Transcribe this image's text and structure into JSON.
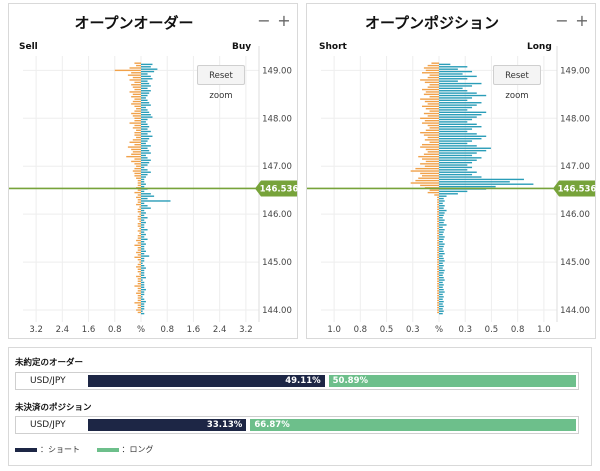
{
  "colors": {
    "sell": "#f0a14a",
    "buy": "#2a9db8",
    "price_line": "#77a33a",
    "short_bar": "#1d2645",
    "long_bar": "#6dbf8b"
  },
  "orders_panel": {
    "title": "オープンオーダー",
    "minus": "−",
    "plus": "+",
    "left_label": "Sell",
    "right_label": "Buy",
    "reset_zoom": "Reset zoom"
  },
  "positions_panel": {
    "title": "オープンポジション",
    "minus": "−",
    "plus": "+",
    "left_label": "Short",
    "right_label": "Long",
    "reset_zoom": "Reset zoom"
  },
  "chart_data": [
    {
      "type": "bar",
      "orientation": "horizontal-butterfly",
      "title": "オープンオーダー",
      "left_series": "Sell",
      "right_series": "Buy",
      "y_range": [
        143.75,
        149.3
      ],
      "y_ticks": [
        "149.00",
        "148.00",
        "147.00",
        "146.00",
        "145.00",
        "144.00"
      ],
      "x_range": [
        -3.6,
        3.6
      ],
      "x_ticks": [
        "3.2",
        "2.4",
        "1.6",
        "0.8",
        "%",
        "0.8",
        "1.6",
        "2.4",
        "3.2"
      ],
      "current_price": "146.536",
      "price_step": 0.05,
      "price_start": 149.15,
      "sell": [
        0.2,
        0.15,
        0.35,
        0.8,
        0.3,
        0.4,
        0.25,
        0.35,
        0.2,
        0.3,
        0.25,
        0.2,
        0.35,
        0.25,
        0.3,
        0.2,
        0.25,
        0.3,
        0.2,
        0.15,
        0.2,
        0.3,
        0.25,
        0.2,
        0.2,
        0.35,
        0.2,
        0.25,
        0.15,
        0.2,
        0.2,
        0.15,
        0.25,
        0.35,
        0.2,
        0.4,
        0.3,
        0.25,
        0.3,
        0.45,
        0.2,
        0.3,
        0.2,
        0.15,
        0.2,
        0.25,
        0.2,
        0.2,
        0.15,
        0.1,
        0.1,
        0.1,
        0.15,
        0.1,
        0.2,
        0.1,
        0.15,
        0.1,
        0.1,
        0.15,
        0.05,
        0.1,
        0.1,
        0.05,
        0.1,
        0.1,
        0.05,
        0.1,
        0.1,
        0.05,
        0.1,
        0.05,
        0.1,
        0.1,
        0.15,
        0.1,
        0.2,
        0.1,
        0.1,
        0.15,
        0.1,
        0.2,
        0.1,
        0.05,
        0.1,
        0.15,
        0.1,
        0.1,
        0.05,
        0.15,
        0.1,
        0.1,
        0.1,
        0.2,
        0.1,
        0.1,
        0.15,
        0.1,
        0.1,
        0.1,
        0.2,
        0.1,
        0.1,
        0.15,
        0.1
      ],
      "buy": [
        0.35,
        0.3,
        0.5,
        0.4,
        0.2,
        0.3,
        0.35,
        0.2,
        0.25,
        0.3,
        0.2,
        0.3,
        0.25,
        0.2,
        0.15,
        0.2,
        0.25,
        0.3,
        0.15,
        0.2,
        0.25,
        0.3,
        0.35,
        0.2,
        0.15,
        0.2,
        0.25,
        0.2,
        0.3,
        0.2,
        0.35,
        0.25,
        0.2,
        0.15,
        0.3,
        0.2,
        0.25,
        0.3,
        0.15,
        0.2,
        0.3,
        0.25,
        0.2,
        0.1,
        0.2,
        0.3,
        0.2,
        0.15,
        0.1,
        0.1,
        0.15,
        0.1,
        0.2,
        0.1,
        0.3,
        0.4,
        0.2,
        0.9,
        0.1,
        0.2,
        0.3,
        0.1,
        0.15,
        0.1,
        0.2,
        0.1,
        0.15,
        0.1,
        0.1,
        0.2,
        0.1,
        0.15,
        0.1,
        0.2,
        0.1,
        0.15,
        0.1,
        0.1,
        0.15,
        0.1,
        0.25,
        0.1,
        0.1,
        0.05,
        0.1,
        0.15,
        0.1,
        0.1,
        0.1,
        0.15,
        0.05,
        0.1,
        0.1,
        0.1,
        0.15,
        0.1,
        0.1,
        0.05,
        0.1,
        0.15,
        0.1,
        0.1,
        0.1,
        0.05,
        0.1
      ]
    },
    {
      "type": "bar",
      "orientation": "horizontal-butterfly",
      "title": "オープンポジション",
      "left_series": "Short",
      "right_series": "Long",
      "y_range": [
        143.75,
        149.3
      ],
      "y_ticks": [
        "149.00",
        "148.00",
        "147.00",
        "146.00",
        "145.00",
        "144.00"
      ],
      "x_range": [
        -1.25,
        1.25
      ],
      "x_ticks": [
        "1.0",
        "0.8",
        "0.5",
        "0.3",
        "%",
        "0.3",
        "0.5",
        "0.8",
        "1.0"
      ],
      "current_price": "146.536",
      "price_step": 0.05,
      "price_start": 149.15,
      "short": [
        0.08,
        0.12,
        0.16,
        0.14,
        0.18,
        0.1,
        0.12,
        0.2,
        0.15,
        0.1,
        0.12,
        0.18,
        0.14,
        0.16,
        0.1,
        0.2,
        0.15,
        0.12,
        0.18,
        0.14,
        0.1,
        0.16,
        0.12,
        0.2,
        0.15,
        0.18,
        0.12,
        0.1,
        0.14,
        0.2,
        0.16,
        0.12,
        0.15,
        0.1,
        0.18,
        0.2,
        0.14,
        0.12,
        0.16,
        0.22,
        0.18,
        0.14,
        0.2,
        0.15,
        0.25,
        0.3,
        0.2,
        0.18,
        0.22,
        0.25,
        0.3,
        0.2,
        0.15,
        0.1,
        0.12,
        0.05,
        0.02,
        0.02,
        0.02,
        0.02,
        0.02,
        0.02,
        0.02,
        0.02,
        0.02,
        0.02,
        0.02,
        0.02,
        0.02,
        0.02,
        0.02,
        0.02,
        0.02,
        0.02,
        0.02,
        0.02,
        0.02,
        0.02,
        0.02,
        0.02,
        0.02,
        0.02,
        0.02,
        0.02,
        0.02,
        0.02,
        0.02,
        0.02,
        0.02,
        0.02,
        0.02,
        0.02,
        0.02,
        0.02,
        0.02,
        0.02,
        0.02,
        0.02,
        0.02,
        0.02,
        0.02,
        0.02,
        0.02,
        0.02,
        0.02
      ],
      "long": [
        0.12,
        0.3,
        0.2,
        0.35,
        0.25,
        0.4,
        0.3,
        0.2,
        0.45,
        0.35,
        0.25,
        0.3,
        0.4,
        0.5,
        0.35,
        0.3,
        0.45,
        0.4,
        0.35,
        0.3,
        0.5,
        0.45,
        0.4,
        0.35,
        0.3,
        0.4,
        0.45,
        0.35,
        0.3,
        0.4,
        0.5,
        0.45,
        0.35,
        0.3,
        0.4,
        0.55,
        0.5,
        0.4,
        0.35,
        0.45,
        0.4,
        0.35,
        0.3,
        0.35,
        0.3,
        0.4,
        0.35,
        0.45,
        0.9,
        0.75,
        1.0,
        0.6,
        0.5,
        0.3,
        0.2,
        0.08,
        0.05,
        0.06,
        0.04,
        0.06,
        0.05,
        0.08,
        0.06,
        0.05,
        0.04,
        0.06,
        0.05,
        0.08,
        0.04,
        0.06,
        0.05,
        0.04,
        0.06,
        0.05,
        0.04,
        0.06,
        0.05,
        0.04,
        0.05,
        0.06,
        0.04,
        0.05,
        0.06,
        0.04,
        0.05,
        0.04,
        0.06,
        0.05,
        0.04,
        0.05,
        0.06,
        0.04,
        0.05,
        0.04,
        0.05,
        0.06,
        0.04,
        0.05,
        0.04,
        0.05,
        0.04,
        0.05,
        0.04,
        0.05,
        0.04
      ]
    },
    {
      "type": "bar",
      "orientation": "stacked-horizontal",
      "categories": [
        "未約定のオーダー",
        "未決済のポジション"
      ],
      "series": [
        {
          "name": "ショート",
          "values": [
            49.11,
            33.13
          ]
        },
        {
          "name": "ロング",
          "values": [
            50.89,
            66.87
          ]
        }
      ]
    }
  ],
  "summary": {
    "orders": {
      "title": "未約定のオーダー",
      "pair": "USD/JPY",
      "short_label": "49.11%",
      "long_label": "50.89%",
      "short_pct": 49.11
    },
    "positions": {
      "title": "未決済のポジション",
      "pair": "USD/JPY",
      "short_label": "33.13%",
      "long_label": "66.87%",
      "short_pct": 33.13
    },
    "legend_short": "：ショート",
    "legend_long": "：ロング"
  }
}
